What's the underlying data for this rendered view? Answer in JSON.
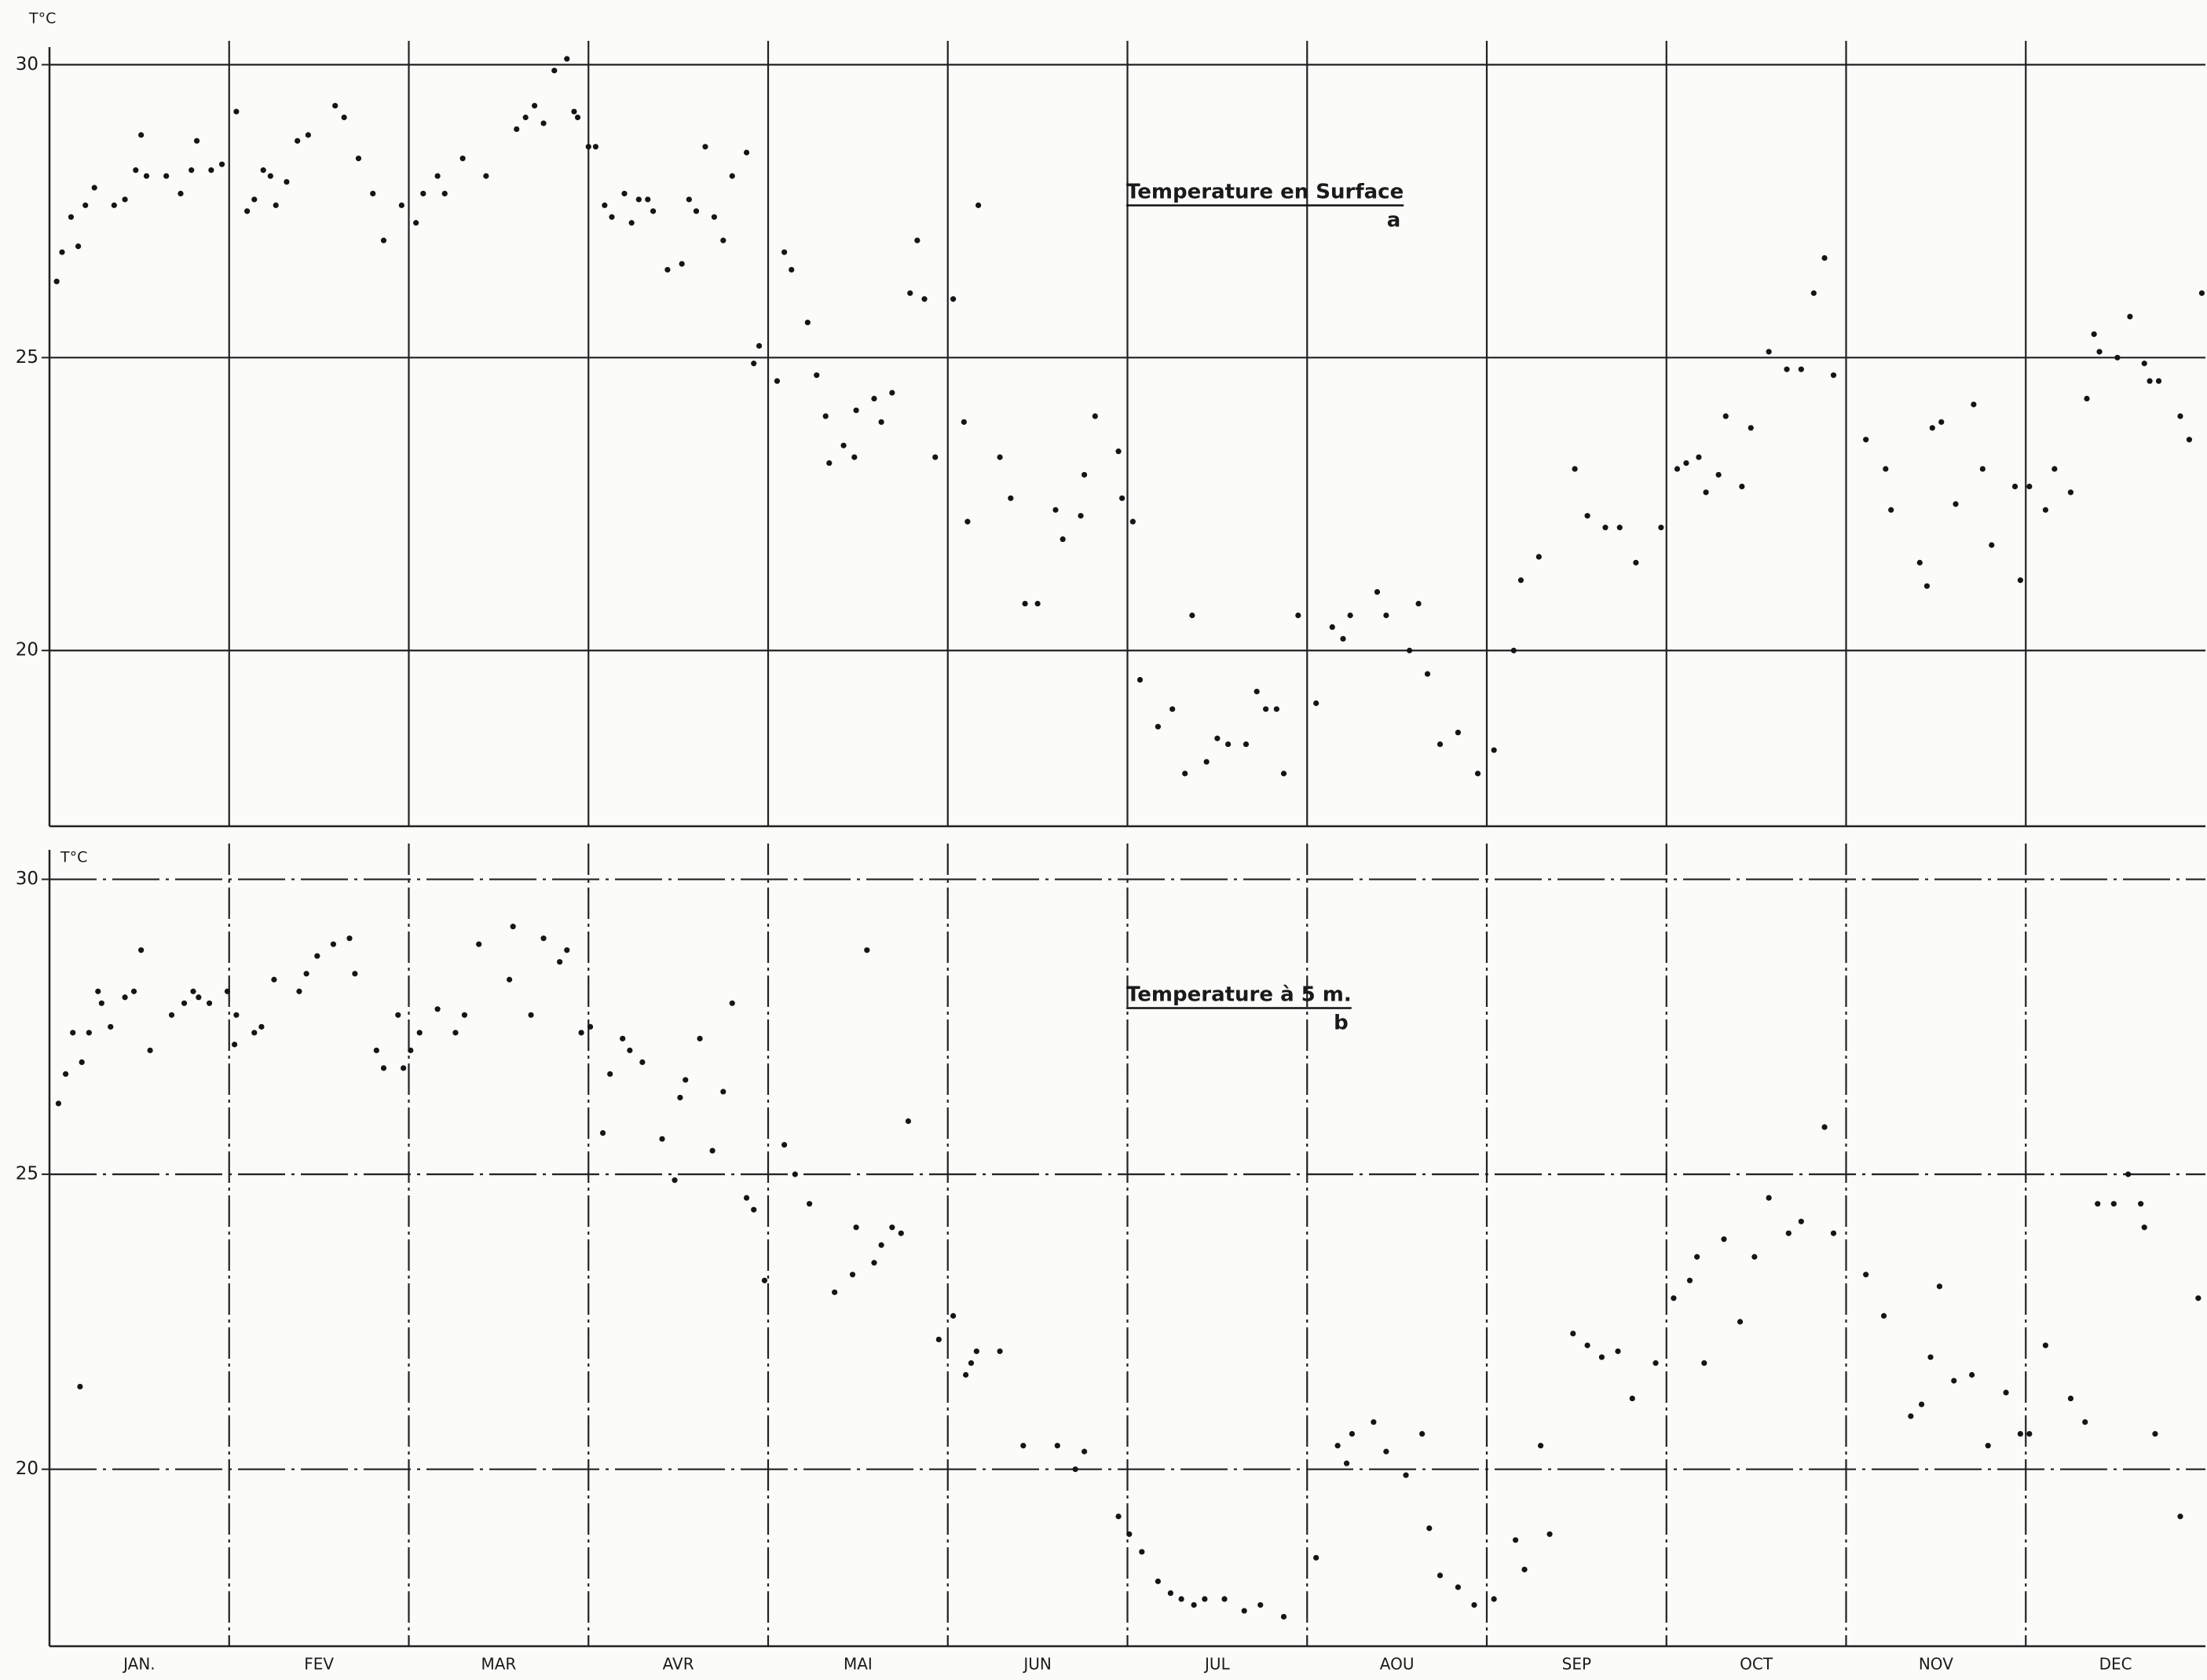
{
  "chart_data": [
    {
      "type": "scatter",
      "ylabel": "T°C",
      "title": "Temperature en Surface",
      "panel_label": "a",
      "xlim": [
        0,
        12
      ],
      "ylim": [
        17,
        30.3
      ],
      "yticks": [
        20,
        25,
        30
      ],
      "grid": true,
      "series": [
        {
          "color": "#151515",
          "x": [
            0.04,
            0.07,
            0.12,
            0.16,
            0.2,
            0.25,
            0.36,
            0.42,
            0.48,
            0.51,
            0.54,
            0.65,
            0.73,
            0.79,
            0.82,
            0.9,
            0.96,
            1.04,
            1.1,
            1.14,
            1.19,
            1.23,
            1.26,
            1.32,
            1.38,
            1.44,
            1.59,
            1.64,
            1.72,
            1.8,
            1.86,
            1.96,
            2.04,
            2.08,
            2.16,
            2.2,
            2.3,
            2.43,
            2.6,
            2.65,
            2.7,
            2.75,
            2.81,
            2.88,
            2.92,
            2.94,
            3.0,
            3.04,
            3.09,
            3.13,
            3.2,
            3.24,
            3.28,
            3.33,
            3.36,
            3.44,
            3.52,
            3.56,
            3.6,
            3.65,
            3.7,
            3.75,
            3.8,
            3.88,
            3.92,
            3.95,
            4.05,
            4.09,
            4.13,
            4.22,
            4.27,
            4.32,
            4.34,
            4.42,
            4.48,
            4.49,
            4.59,
            4.63,
            4.69,
            4.79,
            4.83,
            4.87,
            4.93,
            5.03,
            5.09,
            5.11,
            5.17,
            5.29,
            5.35,
            5.43,
            5.5,
            5.6,
            5.64,
            5.74,
            5.76,
            5.82,
            5.95,
            5.97,
            6.03,
            6.07,
            6.17,
            6.25,
            6.32,
            6.36,
            6.44,
            6.5,
            6.56,
            6.66,
            6.72,
            6.77,
            6.83,
            6.87,
            6.95,
            7.05,
            7.14,
            7.2,
            7.24,
            7.39,
            7.44,
            7.57,
            7.62,
            7.67,
            7.74,
            7.84,
            7.95,
            8.04,
            8.15,
            8.19,
            8.29,
            8.49,
            8.56,
            8.66,
            8.74,
            8.83,
            8.97,
            9.06,
            9.11,
            9.18,
            9.22,
            9.29,
            9.33,
            9.42,
            9.47,
            9.57,
            9.67,
            9.75,
            9.82,
            9.88,
            9.93,
            10.11,
            10.22,
            10.25,
            10.41,
            10.45,
            10.48,
            10.53,
            10.61,
            10.71,
            10.76,
            10.81,
            10.94,
            10.97,
            11.02,
            11.11,
            11.16,
            11.25,
            11.34,
            11.38,
            11.41,
            11.51,
            11.58,
            11.66,
            11.69,
            11.74,
            11.86,
            11.91,
            11.98
          ],
          "values": [
            26.3,
            26.8,
            27.4,
            26.9,
            27.6,
            27.9,
            27.6,
            27.7,
            28.2,
            28.8,
            28.1,
            28.1,
            27.8,
            28.2,
            28.7,
            28.2,
            28.3,
            29.2,
            27.5,
            27.7,
            28.2,
            28.1,
            27.6,
            28.0,
            28.7,
            28.8,
            29.3,
            29.1,
            28.4,
            27.8,
            27.0,
            27.6,
            27.3,
            27.8,
            28.1,
            27.8,
            28.4,
            28.1,
            28.9,
            29.1,
            29.3,
            29.0,
            29.9,
            30.1,
            29.2,
            29.1,
            28.6,
            28.6,
            27.6,
            27.4,
            27.8,
            27.3,
            27.7,
            27.7,
            27.5,
            26.5,
            26.6,
            27.7,
            27.5,
            28.6,
            27.4,
            27.0,
            28.1,
            28.5,
            24.9,
            25.2,
            24.6,
            26.8,
            26.5,
            25.6,
            24.7,
            24.0,
            23.2,
            23.5,
            23.3,
            24.1,
            24.3,
            23.9,
            24.4,
            26.1,
            27.0,
            26.0,
            23.3,
            26.0,
            23.9,
            22.2,
            27.6,
            23.3,
            22.6,
            20.8,
            20.8,
            22.4,
            21.9,
            22.3,
            23.0,
            24.0,
            23.4,
            22.6,
            22.2,
            19.5,
            18.7,
            19.0,
            17.9,
            20.6,
            18.1,
            18.5,
            18.4,
            18.4,
            19.3,
            19.0,
            19.0,
            17.9,
            20.6,
            19.1,
            20.4,
            20.2,
            20.6,
            21.0,
            20.6,
            20.0,
            20.8,
            19.6,
            18.4,
            18.6,
            17.9,
            18.3,
            20.0,
            21.2,
            21.6,
            23.1,
            22.3,
            22.1,
            22.1,
            21.5,
            22.1,
            23.1,
            23.2,
            23.3,
            22.7,
            23.0,
            24.0,
            22.8,
            23.8,
            25.1,
            24.8,
            24.8,
            26.1,
            26.7,
            24.7,
            23.6,
            23.1,
            22.4,
            21.5,
            21.1,
            23.8,
            23.9,
            22.5,
            24.2,
            23.1,
            21.8,
            22.8,
            21.2,
            22.8,
            22.4,
            23.1,
            22.7,
            24.3,
            25.4,
            25.1,
            25.0,
            25.7,
            24.9,
            24.6,
            24.6,
            24.0,
            23.6,
            26.1
          ]
        }
      ]
    },
    {
      "type": "scatter",
      "ylabel": "T°C",
      "title": "Temperature à 5 m.",
      "panel_label": "b",
      "categories": [
        "JAN.",
        "FEV",
        "MAR",
        "AVR",
        "MAI",
        "JUN",
        "JUL",
        "AOU",
        "SEP",
        "OCT",
        "NOV",
        "DEC"
      ],
      "xlim": [
        0,
        12
      ],
      "ylim": [
        17,
        30.5
      ],
      "yticks": [
        20,
        25,
        30
      ],
      "grid": true,
      "series": [
        {
          "color": "#151515",
          "x": [
            0.05,
            0.09,
            0.13,
            0.17,
            0.18,
            0.22,
            0.27,
            0.29,
            0.34,
            0.42,
            0.47,
            0.51,
            0.56,
            0.68,
            0.75,
            0.8,
            0.83,
            0.89,
            0.99,
            1.03,
            1.04,
            1.14,
            1.18,
            1.25,
            1.39,
            1.43,
            1.49,
            1.58,
            1.67,
            1.7,
            1.82,
            1.86,
            1.94,
            1.97,
            2.01,
            2.06,
            2.16,
            2.26,
            2.31,
            2.39,
            2.56,
            2.58,
            2.68,
            2.75,
            2.84,
            2.88,
            2.96,
            3.01,
            3.08,
            3.12,
            3.19,
            3.23,
            3.3,
            3.41,
            3.48,
            3.51,
            3.54,
            3.62,
            3.69,
            3.75,
            3.8,
            3.88,
            3.92,
            3.98,
            4.09,
            4.15,
            4.23,
            4.37,
            4.47,
            4.49,
            4.55,
            4.59,
            4.63,
            4.69,
            4.74,
            4.78,
            4.95,
            5.03,
            5.1,
            5.13,
            5.16,
            5.29,
            5.42,
            5.61,
            5.71,
            5.76,
            5.95,
            6.01,
            6.08,
            6.17,
            6.24,
            6.3,
            6.37,
            6.43,
            6.54,
            6.65,
            6.74,
            6.87,
            7.05,
            7.17,
            7.22,
            7.25,
            7.37,
            7.44,
            7.55,
            7.64,
            7.68,
            7.74,
            7.84,
            7.93,
            8.04,
            8.16,
            8.21,
            8.3,
            8.35,
            8.48,
            8.56,
            8.64,
            8.73,
            8.81,
            8.94,
            9.04,
            9.13,
            9.17,
            9.21,
            9.32,
            9.41,
            9.49,
            9.57,
            9.68,
            9.75,
            9.88,
            9.93,
            10.11,
            10.21,
            10.36,
            10.42,
            10.47,
            10.52,
            10.6,
            10.7,
            10.79,
            10.89,
            10.97,
            11.02,
            11.11,
            11.25,
            11.33,
            11.4,
            11.49,
            11.57,
            11.64,
            11.66,
            11.72,
            11.86,
            11.96
          ],
          "values": [
            26.2,
            26.7,
            27.4,
            21.4,
            26.9,
            27.4,
            28.1,
            27.9,
            27.5,
            28.0,
            28.1,
            28.8,
            27.1,
            27.7,
            27.9,
            28.1,
            28.0,
            27.9,
            28.1,
            27.2,
            27.7,
            27.4,
            27.5,
            28.3,
            28.1,
            28.4,
            28.7,
            28.9,
            29.0,
            28.4,
            27.1,
            26.8,
            27.7,
            26.8,
            27.1,
            27.4,
            27.8,
            27.4,
            27.7,
            28.9,
            28.3,
            29.2,
            27.7,
            29.0,
            28.6,
            28.8,
            27.4,
            27.5,
            25.7,
            26.7,
            27.3,
            27.1,
            26.9,
            25.6,
            24.9,
            26.3,
            26.6,
            27.3,
            25.4,
            26.4,
            27.9,
            24.6,
            24.4,
            23.2,
            25.5,
            25.0,
            24.5,
            23.0,
            23.3,
            24.1,
            28.8,
            23.5,
            23.8,
            24.1,
            24.0,
            25.9,
            22.2,
            22.6,
            21.6,
            21.8,
            22.0,
            22.0,
            20.4,
            20.4,
            20.0,
            20.3,
            19.2,
            18.9,
            18.6,
            18.1,
            17.9,
            17.8,
            17.7,
            17.8,
            17.8,
            17.6,
            17.7,
            17.5,
            18.5,
            20.4,
            20.1,
            20.6,
            20.8,
            20.3,
            19.9,
            20.6,
            19.0,
            18.2,
            18.0,
            17.7,
            17.8,
            18.8,
            18.3,
            20.4,
            18.9,
            22.3,
            22.1,
            21.9,
            22.0,
            21.2,
            21.8,
            22.9,
            23.2,
            23.6,
            21.8,
            23.9,
            22.5,
            23.6,
            24.6,
            24.0,
            24.2,
            25.8,
            24.0,
            23.3,
            22.6,
            20.9,
            21.1,
            21.9,
            23.1,
            21.5,
            21.6,
            20.4,
            21.3,
            20.6,
            20.6,
            22.1,
            21.2,
            20.8,
            24.5,
            24.5,
            25.0,
            24.5,
            24.1,
            20.6,
            19.2,
            22.9
          ]
        }
      ]
    }
  ]
}
